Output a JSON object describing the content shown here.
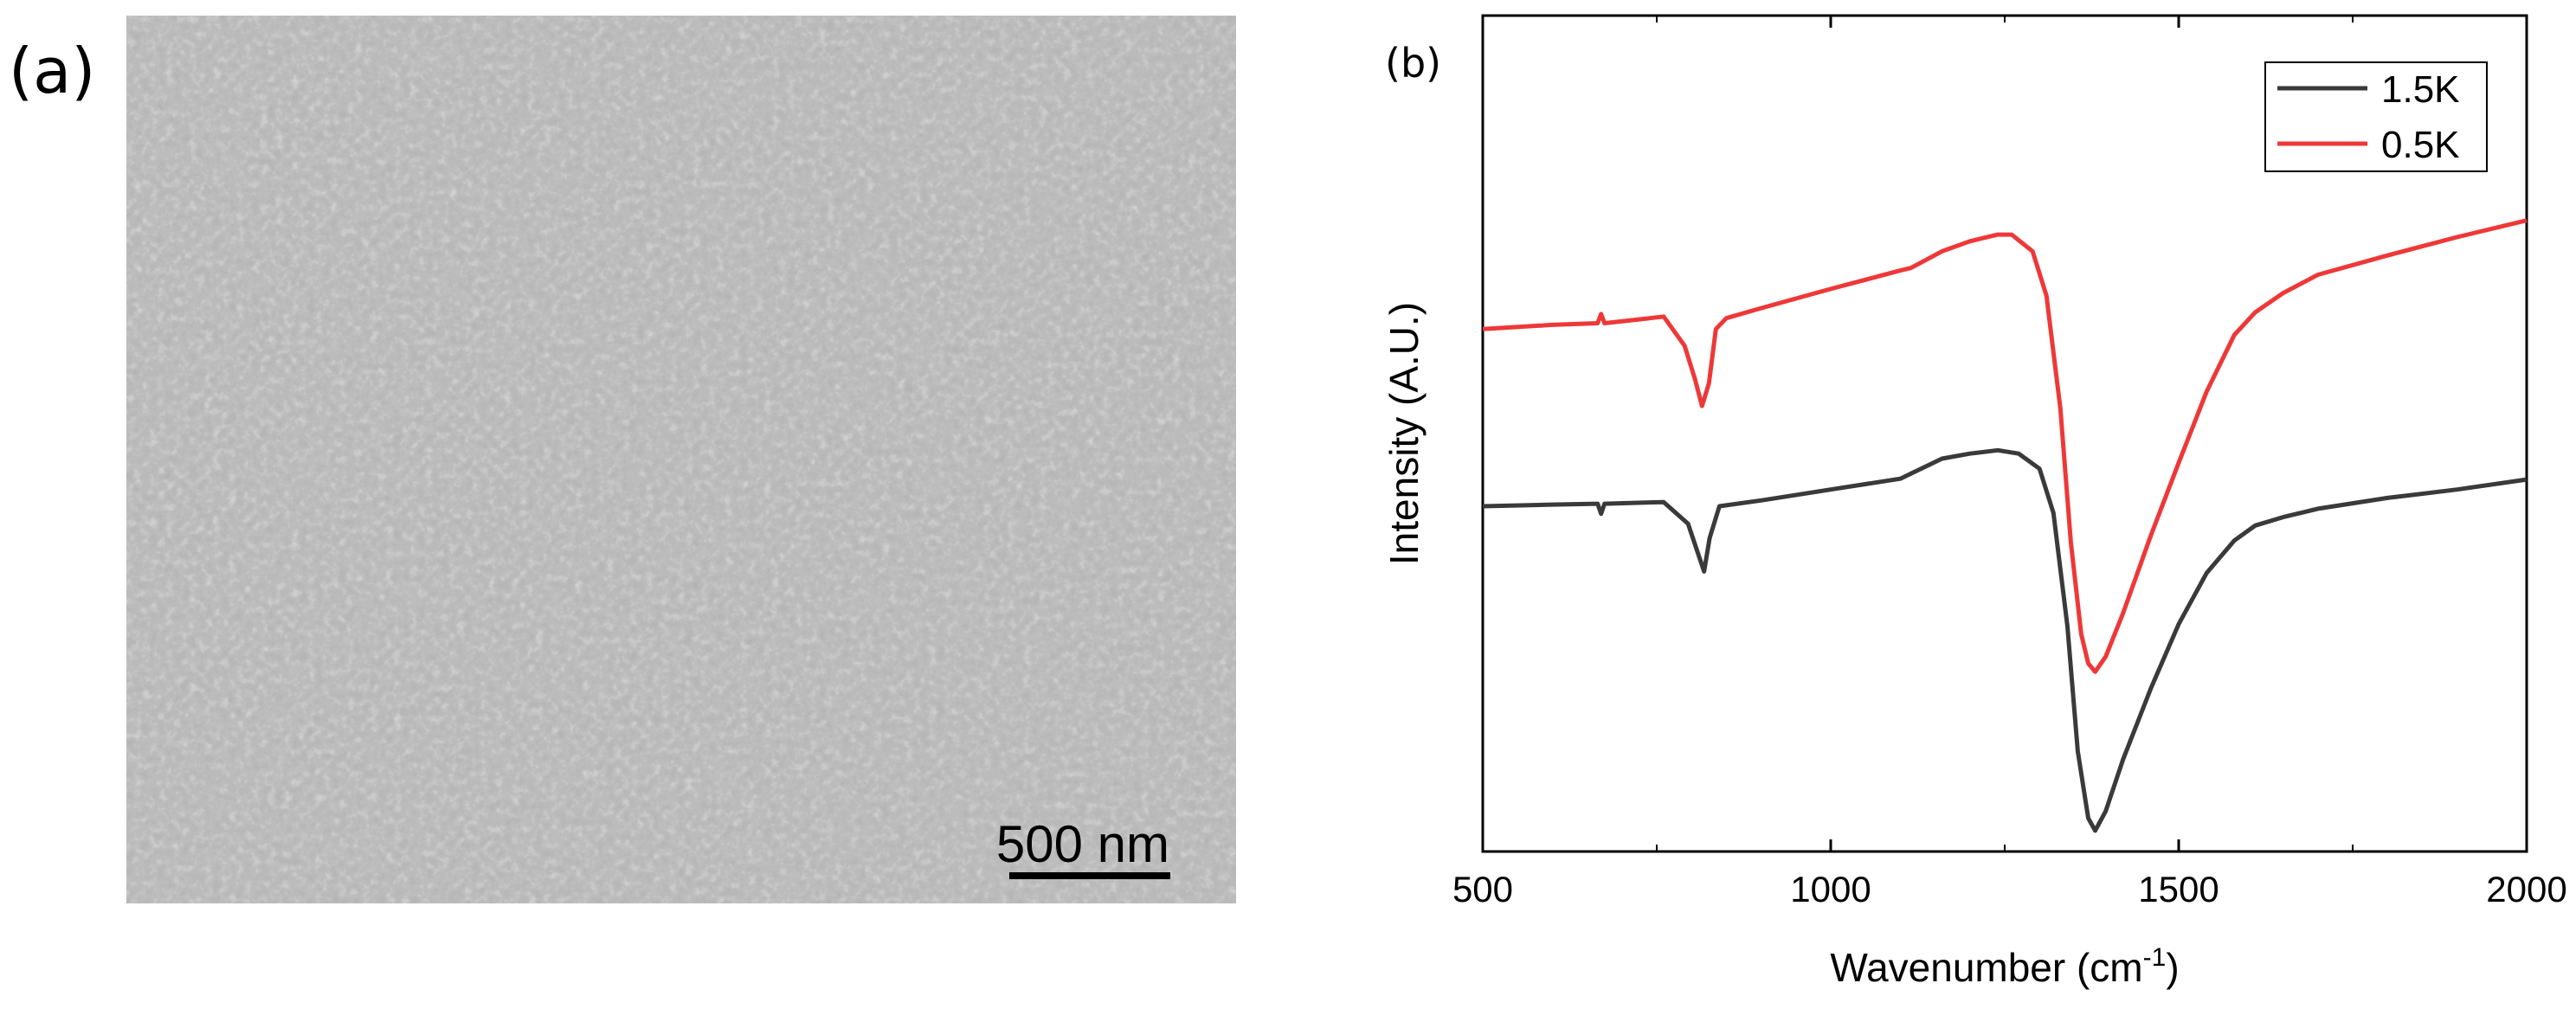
{
  "panels": {
    "a_label": "(a)",
    "b_label": "(b)"
  },
  "sem_image": {
    "scale_bar_label": "500 nm",
    "background_color": "#8a8a8a"
  },
  "chart_data": {
    "type": "line",
    "title": "",
    "xlabel": "Wavenumber (cm",
    "xlabel_superscript": "-1",
    "xlabel_suffix": ")",
    "ylabel": "Intensity (A.U.)",
    "xlim": [
      500,
      2000
    ],
    "ylim": [
      0,
      1
    ],
    "x_ticks": [
      "500",
      "1000",
      "1500",
      "2000"
    ],
    "y_ticks_labeled": false,
    "grid": false,
    "legend_position": "top-right",
    "series": [
      {
        "name": "1.5K",
        "color": "#3a3a3a",
        "x": [
          500,
          600,
          665,
          670,
          675,
          760,
          795,
          810,
          818,
          826,
          840,
          900,
          1000,
          1100,
          1115,
          1160,
          1200,
          1240,
          1270,
          1300,
          1320,
          1340,
          1355,
          1370,
          1380,
          1395,
          1420,
          1460,
          1500,
          1540,
          1580,
          1610,
          1650,
          1700,
          1800,
          1900,
          2000
        ],
        "y": [
          0.413,
          0.415,
          0.416,
          0.404,
          0.416,
          0.418,
          0.392,
          0.355,
          0.335,
          0.375,
          0.413,
          0.42,
          0.433,
          0.446,
          0.452,
          0.47,
          0.476,
          0.48,
          0.476,
          0.458,
          0.405,
          0.27,
          0.12,
          0.04,
          0.025,
          0.048,
          0.11,
          0.195,
          0.272,
          0.333,
          0.372,
          0.39,
          0.4,
          0.41,
          0.423,
          0.433,
          0.445
        ]
      },
      {
        "name": "0.5K",
        "color": "#ee3838",
        "x": [
          500,
          600,
          665,
          670,
          675,
          740,
          760,
          790,
          805,
          815,
          825,
          835,
          850,
          900,
          1000,
          1100,
          1115,
          1160,
          1200,
          1240,
          1260,
          1290,
          1310,
          1330,
          1345,
          1360,
          1370,
          1380,
          1395,
          1420,
          1460,
          1500,
          1540,
          1580,
          1610,
          1650,
          1700,
          1800,
          1900,
          2000
        ],
        "y": [
          0.625,
          0.63,
          0.632,
          0.643,
          0.632,
          0.638,
          0.64,
          0.605,
          0.565,
          0.533,
          0.56,
          0.625,
          0.638,
          0.65,
          0.673,
          0.695,
          0.698,
          0.718,
          0.73,
          0.738,
          0.738,
          0.718,
          0.665,
          0.53,
          0.37,
          0.26,
          0.225,
          0.215,
          0.233,
          0.285,
          0.378,
          0.465,
          0.55,
          0.618,
          0.645,
          0.668,
          0.69,
          0.713,
          0.735,
          0.755
        ]
      }
    ]
  }
}
